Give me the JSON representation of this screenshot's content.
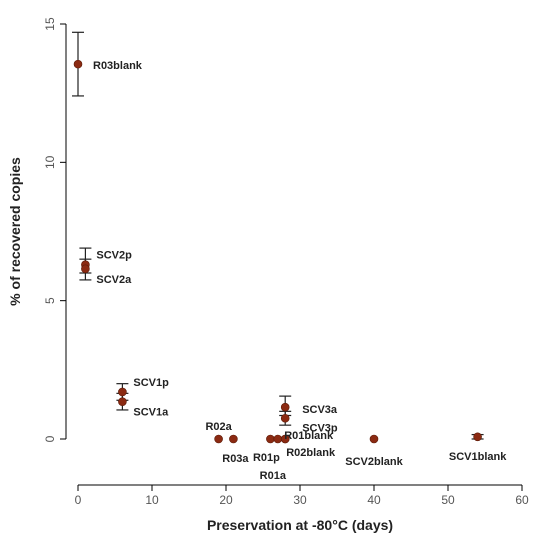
{
  "chart_data": {
    "type": "scatter",
    "xlabel": "Preservation at -80°C (days)",
    "ylabel": "% of recovered copies",
    "xlim": [
      0,
      60
    ],
    "ylim": [
      0,
      15
    ],
    "xticks": [
      0,
      10,
      20,
      30,
      40,
      50,
      60
    ],
    "yticks": [
      0,
      5,
      10,
      15
    ],
    "marker_color": "#8b2a12",
    "points": [
      {
        "label": "R03blank",
        "x": 0,
        "y": 13.55,
        "err_low": 12.4,
        "err_high": 14.7
      },
      {
        "label": "SCV2p",
        "x": 1,
        "y": 6.3,
        "err_low": 6.0,
        "err_high": 6.9
      },
      {
        "label": "SCV2a",
        "x": 1,
        "y": 6.15,
        "err_low": 5.75,
        "err_high": 6.5
      },
      {
        "label": "SCV1p",
        "x": 6,
        "y": 1.7,
        "err_low": 1.4,
        "err_high": 2.0
      },
      {
        "label": "SCV1a",
        "x": 6,
        "y": 1.35,
        "err_low": 1.05,
        "err_high": 1.65
      },
      {
        "label": "R02a",
        "x": 19,
        "y": 0,
        "err_low": null,
        "err_high": null
      },
      {
        "label": "R03a",
        "x": 21,
        "y": 0,
        "err_low": null,
        "err_high": null
      },
      {
        "label": "R01p",
        "x": 26,
        "y": 0,
        "err_low": null,
        "err_high": null
      },
      {
        "label": "R01a",
        "x": 27,
        "y": 0,
        "err_low": null,
        "err_high": null
      },
      {
        "label": "SCV3a",
        "x": 28,
        "y": 1.15,
        "err_low": 0.85,
        "err_high": 1.55
      },
      {
        "label": "SCV3p",
        "x": 28,
        "y": 0.75,
        "err_low": 0.5,
        "err_high": 1.0
      },
      {
        "label": "R01blank",
        "x": 28,
        "y": 0,
        "err_low": null,
        "err_high": null
      },
      {
        "label": "R02blank",
        "x": 28,
        "y": 0,
        "err_low": null,
        "err_high": null
      },
      {
        "label": "SCV2blank",
        "x": 40,
        "y": 0,
        "err_low": null,
        "err_high": null
      },
      {
        "label": "SCV1blank",
        "x": 54,
        "y": 0.08,
        "err_low": 0.0,
        "err_high": 0.16
      }
    ]
  }
}
